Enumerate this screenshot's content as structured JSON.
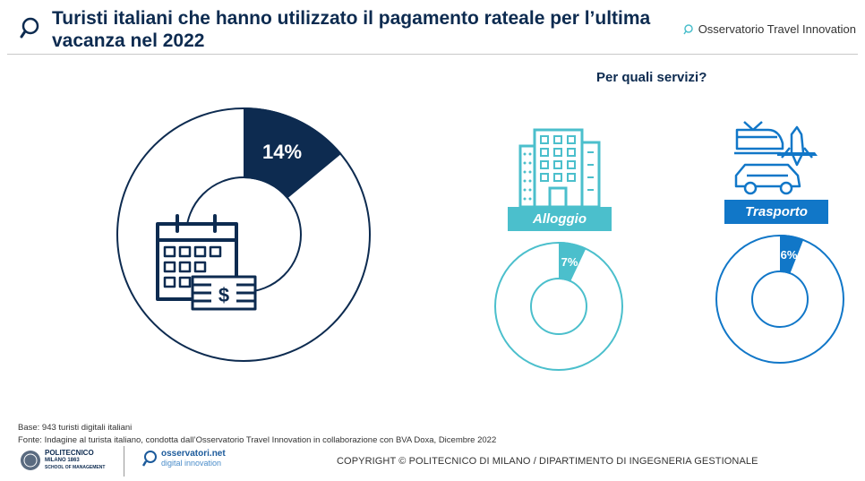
{
  "header": {
    "title": "Turisti italiani che hanno utilizzato il pagamento rateale per l’ultima vacanza nel 2022",
    "brand": "Osservatorio Travel Innovation"
  },
  "subtitle": "Per quali servizi?",
  "chart_data": [
    {
      "type": "pie",
      "variant": "donut",
      "title": "Turisti italiani che hanno utilizzato il pagamento rateale per l’ultima vacanza nel 2022",
      "values": [
        14
      ],
      "labels": [
        "14%"
      ],
      "unit": "%",
      "color": "#0d2b50"
    },
    {
      "type": "pie",
      "variant": "donut",
      "category": "Alloggio",
      "values": [
        7
      ],
      "labels": [
        "7%"
      ],
      "unit": "%",
      "color": "#4bbfcc"
    },
    {
      "type": "pie",
      "variant": "donut",
      "category": "Trasporto",
      "values": [
        6
      ],
      "labels": [
        "6%"
      ],
      "unit": "%",
      "color": "#1177c8"
    }
  ],
  "footer": {
    "base": "Base: 943 turisti digitali italiani",
    "fonte": "Fonte:  Indagine   al turista  italiano,  condotta dall’Osservatorio Travel Innovation in collaborazione con BVA Doxa, Dicembre 2022",
    "copyright": "COPYRIGHT © POLITECNICO DI MILANO / DIPARTIMENTO DI INGEGNERIA GESTIONALE",
    "logo1_line1": "POLITECNICO",
    "logo1_line2": "MILANO 1863",
    "logo1_line3": "SCHOOL OF MANAGEMENT",
    "logo2_line1": "osservatori.net",
    "logo2_line2": "digital innovation"
  }
}
